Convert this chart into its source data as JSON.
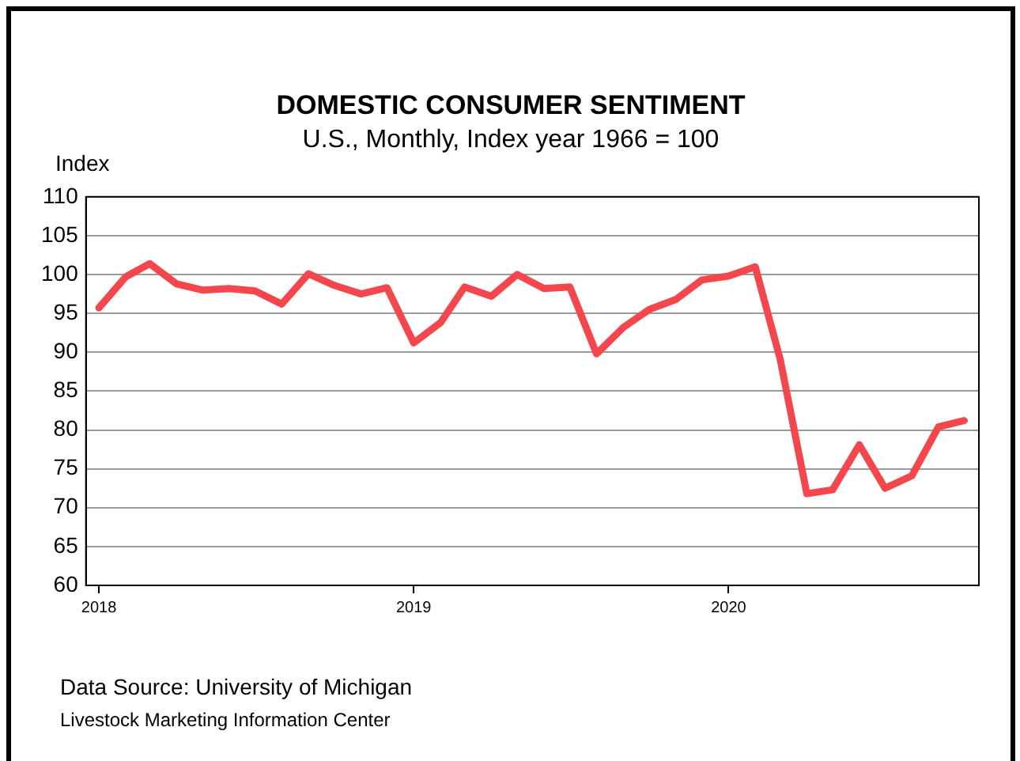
{
  "chart_data": {
    "type": "line",
    "title": "DOMESTIC CONSUMER SENTIMENT",
    "subtitle": "U.S., Monthly, Index year 1966 = 100",
    "ylabel": "Index",
    "x": [
      "2018-01",
      "2018-02",
      "2018-03",
      "2018-04",
      "2018-05",
      "2018-06",
      "2018-07",
      "2018-08",
      "2018-09",
      "2018-10",
      "2018-11",
      "2018-12",
      "2019-01",
      "2019-02",
      "2019-03",
      "2019-04",
      "2019-05",
      "2019-06",
      "2019-07",
      "2019-08",
      "2019-09",
      "2019-10",
      "2019-11",
      "2019-12",
      "2020-01",
      "2020-02",
      "2020-03",
      "2020-04",
      "2020-05",
      "2020-06",
      "2020-07",
      "2020-08",
      "2020-09",
      "2020-10"
    ],
    "series": [
      {
        "color": "#f4474d",
        "values": [
          95.7,
          99.7,
          101.4,
          98.8,
          98.0,
          98.2,
          97.9,
          96.2,
          100.1,
          98.6,
          97.5,
          98.3,
          91.2,
          93.8,
          98.4,
          97.2,
          100.0,
          98.2,
          98.4,
          89.8,
          93.2,
          95.5,
          96.8,
          99.3,
          99.8,
          101.0,
          89.1,
          71.8,
          72.3,
          78.1,
          72.5,
          74.1,
          80.4,
          81.2
        ]
      }
    ],
    "xlim": [
      "2017-12-17",
      "2020-10-18"
    ],
    "xticks": [
      "2018",
      "2019",
      "2020"
    ],
    "ylim": [
      60,
      110
    ],
    "yticks": [
      60,
      65,
      70,
      75,
      80,
      85,
      90,
      95,
      100,
      105,
      110
    ],
    "grid": "y",
    "legend": false,
    "marker": "none",
    "line_style": "solid",
    "annotations": [
      "Data Source:  University of Michigan",
      "Livestock Marketing Information Center"
    ]
  }
}
